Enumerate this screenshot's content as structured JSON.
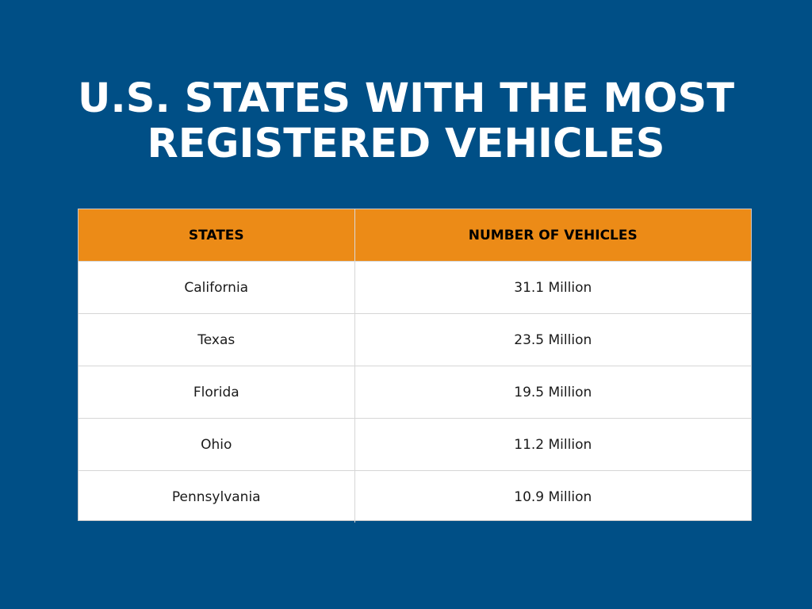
{
  "title_lines": [
    "U.S. STATES WITH THE MOST",
    "REGISTERED VEHICLES"
  ],
  "colors": {
    "background": "#004f86",
    "header": "#ec8b17",
    "title_text": "#ffffff"
  },
  "chart_data": {
    "type": "table",
    "title": "U.S. STATES WITH THE MOST REGISTERED VEHICLES",
    "columns": [
      "STATES",
      "NUMBER OF VEHICLES"
    ],
    "rows": [
      [
        "California",
        "31.1 Million"
      ],
      [
        "Texas",
        "23.5 Million"
      ],
      [
        "Florida",
        "19.5 Million"
      ],
      [
        "Ohio",
        "11.2 Million"
      ],
      [
        "Pennsylvania",
        "10.9 Million"
      ]
    ]
  }
}
